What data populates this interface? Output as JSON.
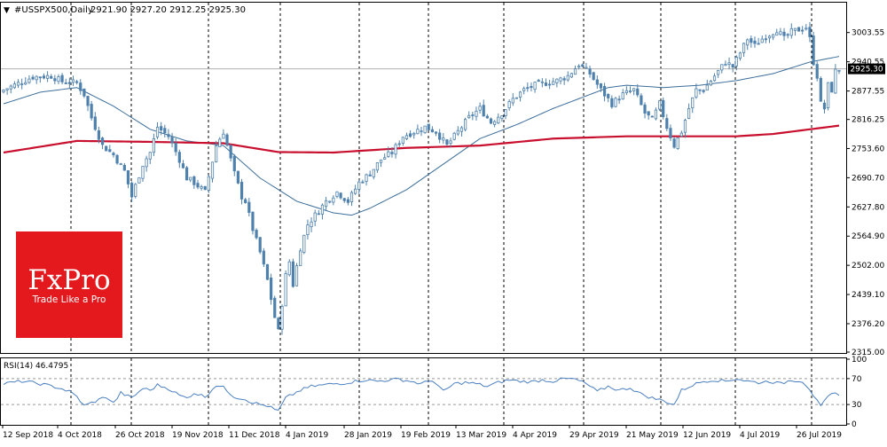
{
  "header": {
    "symbol": "#USSPX500,Daily",
    "ohlc": "2921.90 2927.20 2912.25 2925.30"
  },
  "logo": {
    "brand": "FxPro",
    "tagline": "Trade Like a Pro",
    "color": "#e4191e"
  },
  "colors": {
    "candle": "#4f81ad",
    "ma_short": "#3c6e9a",
    "ma_long": "#c8102e",
    "price_tag_bg": "#000000",
    "rsi_line": "#4a7fc0"
  },
  "chart_data": [
    {
      "type": "candlestick",
      "ylim": [
        2315.0,
        3066.0
      ],
      "y_ticks": [
        3003.55,
        2940.55,
        2877.55,
        2816.25,
        2753.6,
        2690.7,
        2627.8,
        2564.9,
        2502.0,
        2439.1,
        2376.2,
        2315.0
      ],
      "current_price_label": "2925.30",
      "current_price": 2925.3,
      "x_labels": [
        "12 Sep 2018",
        "4 Oct 2018",
        "26 Oct 2018",
        "19 Nov 2018",
        "11 Dec 2018",
        "4 Jan 2019",
        "28 Jan 2019",
        "19 Feb 2019",
        "13 Mar 2019",
        "4 Apr 2019",
        "29 Apr 2019",
        "21 May 2019",
        "12 Jun 2019",
        "4 Jul 2019",
        "26 Jul 2019"
      ],
      "vertical_markers": [
        "4 Oct 2018",
        "Nov 2018",
        "Dec 2018",
        "4 Jan 2019",
        "28 Jan 2019",
        "Mar 2019",
        "Apr 2019",
        "May 2019",
        "Jun 2019",
        "Jul 2019",
        "26 Jul 2019"
      ],
      "close_anchors": [
        [
          0,
          2880
        ],
        [
          8,
          2908
        ],
        [
          13,
          2910
        ],
        [
          16,
          2898
        ],
        [
          20,
          2895
        ],
        [
          22,
          2870
        ],
        [
          24,
          2820
        ],
        [
          27,
          2760
        ],
        [
          30,
          2740
        ],
        [
          33,
          2705
        ],
        [
          35,
          2650
        ],
        [
          38,
          2720
        ],
        [
          40,
          2745
        ],
        [
          42,
          2800
        ],
        [
          45,
          2780
        ],
        [
          48,
          2730
        ],
        [
          50,
          2690
        ],
        [
          52,
          2680
        ],
        [
          55,
          2660
        ],
        [
          58,
          2760
        ],
        [
          60,
          2790
        ],
        [
          63,
          2700
        ],
        [
          65,
          2650
        ],
        [
          66,
          2640
        ],
        [
          68,
          2580
        ],
        [
          70,
          2530
        ],
        [
          72,
          2470
        ],
        [
          74,
          2390
        ],
        [
          75,
          2360
        ],
        [
          77,
          2480
        ],
        [
          78,
          2510
        ],
        [
          79,
          2460
        ],
        [
          81,
          2540
        ],
        [
          83,
          2590
        ],
        [
          85,
          2610
        ],
        [
          88,
          2640
        ],
        [
          91,
          2660
        ],
        [
          94,
          2640
        ],
        [
          97,
          2680
        ],
        [
          100,
          2700
        ],
        [
          103,
          2730
        ],
        [
          106,
          2745
        ],
        [
          109,
          2780
        ],
        [
          112,
          2790
        ],
        [
          115,
          2800
        ],
        [
          118,
          2790
        ],
        [
          121,
          2760
        ],
        [
          124,
          2790
        ],
        [
          127,
          2820
        ],
        [
          130,
          2840
        ],
        [
          133,
          2810
        ],
        [
          136,
          2830
        ],
        [
          139,
          2860
        ],
        [
          142,
          2880
        ],
        [
          145,
          2890
        ],
        [
          148,
          2895
        ],
        [
          151,
          2900
        ],
        [
          154,
          2910
        ],
        [
          157,
          2935
        ],
        [
          160,
          2915
        ],
        [
          163,
          2880
        ],
        [
          166,
          2850
        ],
        [
          169,
          2870
        ],
        [
          172,
          2880
        ],
        [
          175,
          2830
        ],
        [
          177,
          2815
        ],
        [
          179,
          2850
        ],
        [
          181,
          2800
        ],
        [
          183,
          2760
        ],
        [
          185,
          2790
        ],
        [
          187,
          2840
        ],
        [
          189,
          2880
        ],
        [
          191,
          2880
        ],
        [
          193,
          2900
        ],
        [
          195,
          2920
        ],
        [
          197,
          2940
        ],
        [
          199,
          2930
        ],
        [
          201,
          2960
        ],
        [
          203,
          2990
        ],
        [
          205,
          2975
        ],
        [
          207,
          2990
        ],
        [
          209,
          3000
        ],
        [
          211,
          3010
        ],
        [
          213,
          2990
        ],
        [
          215,
          3005
        ],
        [
          217,
          3010
        ],
        [
          219,
          3015
        ],
        [
          220,
          2990
        ],
        [
          221,
          2940
        ],
        [
          222,
          2910
        ],
        [
          223,
          2850
        ],
        [
          224,
          2840
        ],
        [
          225,
          2890
        ],
        [
          226,
          2880
        ],
        [
          227,
          2920
        ],
        [
          228,
          2925
        ]
      ],
      "ma_short_anchors": [
        [
          0,
          2850
        ],
        [
          10,
          2875
        ],
        [
          20,
          2885
        ],
        [
          30,
          2845
        ],
        [
          40,
          2795
        ],
        [
          50,
          2770
        ],
        [
          60,
          2760
        ],
        [
          70,
          2690
        ],
        [
          80,
          2640
        ],
        [
          90,
          2615
        ],
        [
          95,
          2610
        ],
        [
          100,
          2625
        ],
        [
          110,
          2665
        ],
        [
          120,
          2720
        ],
        [
          130,
          2775
        ],
        [
          140,
          2805
        ],
        [
          150,
          2840
        ],
        [
          160,
          2870
        ],
        [
          165,
          2885
        ],
        [
          170,
          2890
        ],
        [
          180,
          2885
        ],
        [
          190,
          2890
        ],
        [
          200,
          2900
        ],
        [
          210,
          2915
        ],
        [
          220,
          2940
        ],
        [
          228,
          2952
        ]
      ],
      "ma_long_anchors": [
        [
          0,
          2745
        ],
        [
          20,
          2770
        ],
        [
          40,
          2768
        ],
        [
          60,
          2765
        ],
        [
          75,
          2746
        ],
        [
          90,
          2745
        ],
        [
          110,
          2755
        ],
        [
          130,
          2760
        ],
        [
          150,
          2775
        ],
        [
          170,
          2780
        ],
        [
          190,
          2780
        ],
        [
          200,
          2780
        ],
        [
          210,
          2785
        ],
        [
          220,
          2795
        ],
        [
          228,
          2803
        ]
      ]
    },
    {
      "type": "line",
      "title": "RSI(14) 46.4795",
      "ylim": [
        0,
        100
      ],
      "y_ticks": [
        100,
        70,
        30,
        0
      ],
      "levels": [
        70,
        30
      ],
      "values_anchors": [
        [
          0,
          62
        ],
        [
          5,
          66
        ],
        [
          10,
          62
        ],
        [
          15,
          56
        ],
        [
          18,
          50
        ],
        [
          20,
          42
        ],
        [
          22,
          28
        ],
        [
          25,
          35
        ],
        [
          28,
          42
        ],
        [
          30,
          32
        ],
        [
          32,
          48
        ],
        [
          35,
          40
        ],
        [
          38,
          55
        ],
        [
          40,
          52
        ],
        [
          42,
          60
        ],
        [
          45,
          55
        ],
        [
          48,
          44
        ],
        [
          50,
          40
        ],
        [
          52,
          48
        ],
        [
          55,
          42
        ],
        [
          58,
          60
        ],
        [
          60,
          56
        ],
        [
          63,
          42
        ],
        [
          66,
          38
        ],
        [
          68,
          33
        ],
        [
          70,
          30
        ],
        [
          72,
          28
        ],
        [
          74,
          22
        ],
        [
          75,
          20
        ],
        [
          77,
          40
        ],
        [
          79,
          46
        ],
        [
          81,
          52
        ],
        [
          84,
          58
        ],
        [
          87,
          60
        ],
        [
          90,
          62
        ],
        [
          93,
          63
        ],
        [
          96,
          66
        ],
        [
          99,
          68
        ],
        [
          102,
          66
        ],
        [
          105,
          68
        ],
        [
          108,
          69
        ],
        [
          111,
          66
        ],
        [
          114,
          62
        ],
        [
          117,
          68
        ],
        [
          120,
          50
        ],
        [
          123,
          62
        ],
        [
          126,
          64
        ],
        [
          129,
          62
        ],
        [
          132,
          58
        ],
        [
          135,
          64
        ],
        [
          138,
          68
        ],
        [
          141,
          66
        ],
        [
          144,
          65
        ],
        [
          147,
          68
        ],
        [
          150,
          66
        ],
        [
          153,
          70
        ],
        [
          156,
          69
        ],
        [
          159,
          62
        ],
        [
          162,
          50
        ],
        [
          165,
          58
        ],
        [
          168,
          52
        ],
        [
          171,
          56
        ],
        [
          174,
          46
        ],
        [
          177,
          40
        ],
        [
          180,
          36
        ],
        [
          183,
          30
        ],
        [
          185,
          52
        ],
        [
          188,
          60
        ],
        [
          191,
          66
        ],
        [
          194,
          68
        ],
        [
          197,
          66
        ],
        [
          200,
          70
        ],
        [
          203,
          66
        ],
        [
          206,
          64
        ],
        [
          209,
          66
        ],
        [
          212,
          62
        ],
        [
          215,
          68
        ],
        [
          218,
          66
        ],
        [
          220,
          54
        ],
        [
          221,
          44
        ],
        [
          222,
          35
        ],
        [
          223,
          26
        ],
        [
          224,
          34
        ],
        [
          225,
          42
        ],
        [
          226,
          45
        ],
        [
          227,
          47
        ],
        [
          228,
          46.5
        ]
      ]
    }
  ]
}
